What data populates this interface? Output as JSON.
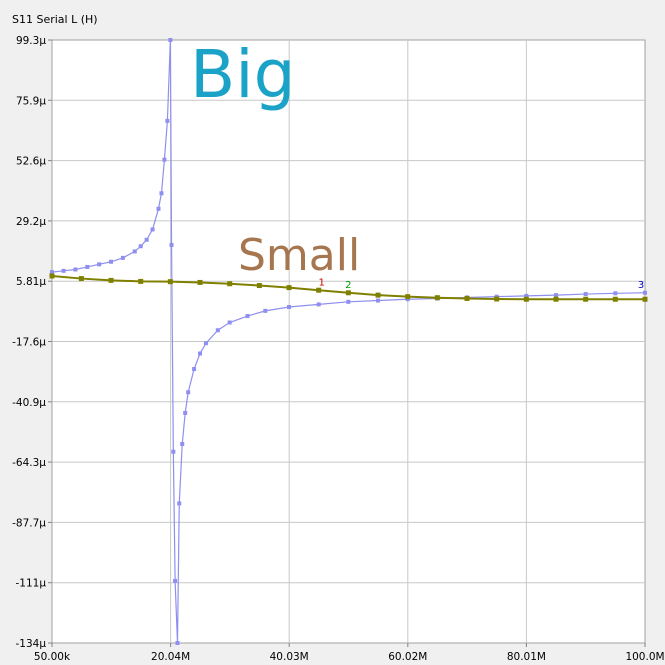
{
  "chart_data": {
    "type": "line",
    "title": "S11 Serial L (H)",
    "xlabel": "",
    "ylabel": "",
    "xlim": [
      0.05,
      100.0
    ],
    "ylim": [
      -134,
      99.3
    ],
    "x_ticks": [
      "50.00k",
      "20.04M",
      "40.03M",
      "60.02M",
      "80.01M",
      "100.0M"
    ],
    "y_ticks": [
      "99.3µ",
      "75.9µ",
      "52.6µ",
      "29.2µ",
      "5.81µ",
      "-17.6µ",
      "-40.9µ",
      "-64.3µ",
      "-87.7µ",
      "-111µ",
      "-134µ"
    ],
    "grid": true,
    "series": [
      {
        "color": "#8f8ff0",
        "values_unit": "µH",
        "x": [
          0.05,
          2,
          4,
          6,
          8,
          10,
          12,
          14,
          15,
          16,
          17,
          18,
          18.5,
          19,
          19.5,
          20.0,
          20.2,
          20.5,
          20.8,
          21.2,
          21.5,
          22,
          22.5,
          23,
          24,
          25,
          26,
          28,
          30,
          33,
          36,
          40,
          45,
          50,
          55,
          60,
          65,
          70,
          75,
          80,
          85,
          90,
          95,
          100
        ],
        "y": [
          9.5,
          10,
          10.5,
          11.5,
          12.5,
          13.5,
          15,
          17.5,
          19.5,
          22,
          26,
          34,
          40,
          53,
          68,
          99.3,
          20,
          -60,
          -110,
          -134,
          -80,
          -57,
          -45,
          -37,
          -28,
          -22,
          -18,
          -13,
          -10,
          -7.5,
          -5.5,
          -4,
          -3,
          -2,
          -1.5,
          -1,
          -0.7,
          -0.3,
          0,
          0.3,
          0.6,
          1,
          1.3,
          1.5
        ]
      },
      {
        "color": "#808000",
        "values_unit": "µH",
        "x": [
          0.05,
          5,
          10,
          15,
          20,
          25,
          30,
          35,
          40,
          45,
          50,
          55,
          60,
          65,
          70,
          75,
          80,
          85,
          90,
          95,
          100
        ],
        "y": [
          8,
          7,
          6.3,
          5.9,
          5.8,
          5.5,
          5,
          4.3,
          3.5,
          2.5,
          1.5,
          0.6,
          0,
          -0.4,
          -0.7,
          -0.9,
          -1,
          -1,
          -1,
          -1,
          -1
        ]
      }
    ],
    "markers": [
      {
        "label": "1",
        "x": 45.5,
        "color": "#cc0000"
      },
      {
        "label": "2",
        "x": 50.0,
        "color": "#00a000"
      },
      {
        "label": "3",
        "x": 100.0,
        "color": "#0000cc"
      }
    ],
    "annotations": [
      {
        "text": "Big",
        "color": "#1aa3c7"
      },
      {
        "text": "Small",
        "color": "#a5764f"
      }
    ]
  }
}
